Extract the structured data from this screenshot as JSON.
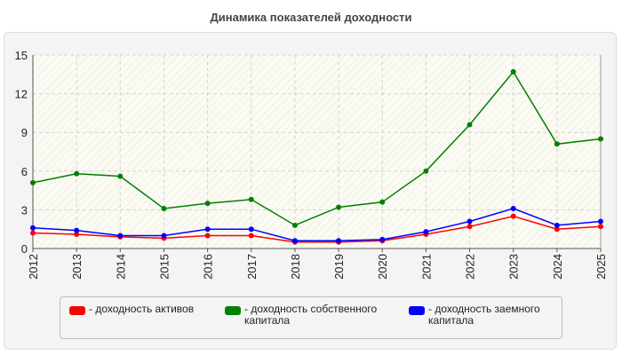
{
  "chart_data": {
    "type": "line",
    "title": "Динамика показателей доходности",
    "xlabel": "",
    "ylabel": "",
    "ylim": [
      0,
      15
    ],
    "yticks": [
      "0",
      "3",
      "6",
      "9",
      "12",
      "15"
    ],
    "grid": true,
    "legend_position": "bottom",
    "categories": [
      "2012",
      "2013",
      "2014",
      "2015",
      "2016",
      "2017",
      "2018",
      "2019",
      "2020",
      "2021",
      "2022",
      "2023",
      "2024",
      "2025"
    ],
    "series": [
      {
        "name": "- доходность активов",
        "color": "#ff0000",
        "values": [
          1.2,
          1.1,
          0.9,
          0.8,
          1.0,
          1.0,
          0.5,
          0.5,
          0.6,
          1.1,
          1.7,
          2.5,
          1.5,
          1.7
        ]
      },
      {
        "name": "- доходность собственного капитала",
        "color": "#008000",
        "values": [
          5.1,
          5.8,
          5.6,
          3.1,
          3.5,
          3.8,
          1.8,
          3.2,
          3.6,
          6.0,
          9.6,
          13.7,
          8.1,
          8.5
        ]
      },
      {
        "name": "- доходность заемного капитала",
        "color": "#0000ff",
        "values": [
          1.6,
          1.4,
          1.0,
          1.0,
          1.5,
          1.5,
          0.6,
          0.6,
          0.7,
          1.3,
          2.1,
          3.1,
          1.8,
          2.1
        ]
      }
    ]
  }
}
